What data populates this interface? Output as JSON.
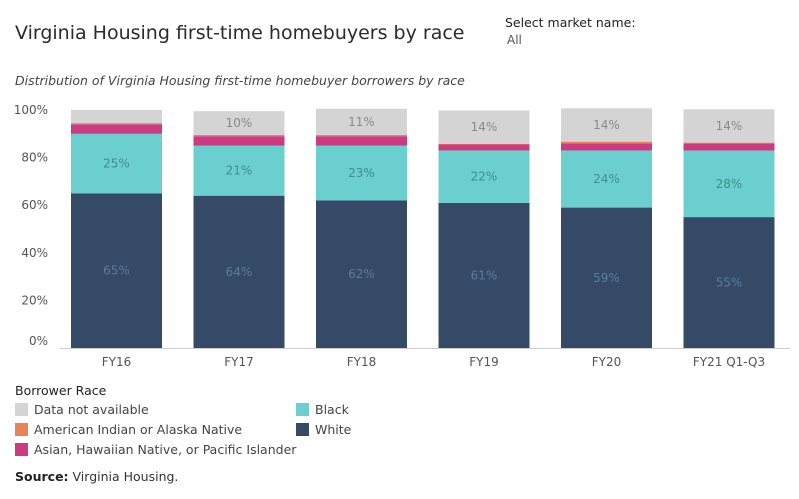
{
  "title": "Virginia Housing first-time homebuyers by race",
  "filter": {
    "label": "Select market name:",
    "value": "All"
  },
  "subtitle": "Distribution of Virginia Housing first-time homebuyer borrowers by race",
  "legend": {
    "title": "Borrower Race",
    "items": [
      {
        "label": "Data not available",
        "color": "#d4d4d4"
      },
      {
        "label": "American Indian or Alaska Native",
        "color": "#e8825a"
      },
      {
        "label": "Asian, Hawaiian Native, or Pacific Islander",
        "color": "#cc3a82"
      },
      {
        "label": "Black",
        "color": "#6acfce"
      },
      {
        "label": "White",
        "color": "#344a66"
      }
    ]
  },
  "source": {
    "prefix": "Source:",
    "text": " Virginia Housing."
  },
  "chart_data": {
    "type": "bar",
    "stacked": true,
    "categories": [
      "FY16",
      "FY17",
      "FY18",
      "FY19",
      "FY20",
      "FY21 Q1-Q3"
    ],
    "ylim": [
      0,
      100
    ],
    "yticks": [
      "0%",
      "20%",
      "40%",
      "60%",
      "80%",
      "100%"
    ],
    "series": [
      {
        "name": "White",
        "color": "#344a66",
        "values": [
          65,
          64,
          62,
          61,
          59,
          55
        ],
        "labels": [
          "65%",
          "64%",
          "62%",
          "61%",
          "59%",
          "55%"
        ],
        "label_color": "#5d7a9e"
      },
      {
        "name": "Black",
        "color": "#6acfce",
        "values": [
          25,
          21,
          23,
          22,
          24,
          28
        ],
        "labels": [
          "25%",
          "21%",
          "23%",
          "22%",
          "24%",
          "28%"
        ],
        "label_color": "#3f8f8e"
      },
      {
        "name": "Asian, Hawaiian Native, or Pacific Islander",
        "color": "#cc3a82",
        "values": [
          4,
          4,
          4,
          2.5,
          3,
          3
        ],
        "labels": [
          "",
          "",
          "",
          "",
          "",
          ""
        ]
      },
      {
        "name": "American Indian or Alaska Native",
        "color": "#e8825a",
        "values": [
          0.5,
          0.5,
          0.5,
          0.3,
          0.7,
          0.3
        ],
        "labels": [
          "",
          "",
          "",
          "",
          "",
          ""
        ]
      },
      {
        "name": "Data not available",
        "color": "#d4d4d4",
        "values": [
          5.5,
          10,
          11,
          14,
          14,
          14
        ],
        "labels": [
          "",
          "10%",
          "11%",
          "14%",
          "14%",
          "14%"
        ],
        "label_color": "#8a8a8a"
      }
    ]
  }
}
